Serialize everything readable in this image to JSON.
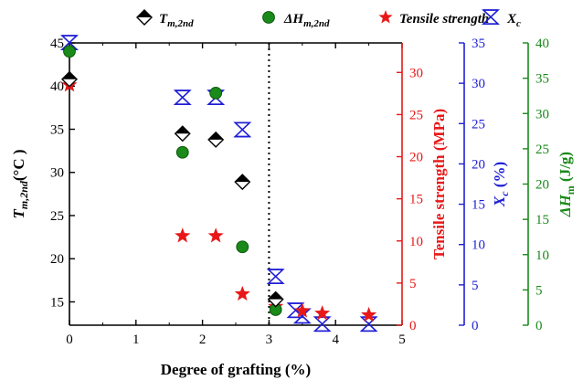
{
  "chart_data": {
    "type": "scatter",
    "legend": {
      "position": "top",
      "entries": [
        {
          "key": "tm",
          "prefix": "T",
          "sub": "m,2nd",
          "color": "#000000"
        },
        {
          "key": "dh",
          "prefix": "ΔH",
          "sub": "m,2nd",
          "color": "#1a8a1a"
        },
        {
          "key": "ts",
          "prefix": "Tensile strength",
          "sub": "",
          "color": "#e81818"
        },
        {
          "key": "xc",
          "prefix": "X",
          "sub": "c",
          "color": "#1f1fd6"
        }
      ]
    },
    "x_axis": {
      "title": "Degree of grafting (%)",
      "range": [
        0,
        5
      ],
      "ticks": [
        "0",
        "1",
        "2",
        "3",
        "4",
        "5"
      ]
    },
    "y_axes": {
      "tm": {
        "title_main": "T",
        "title_sub": "m,2nd",
        "title_unit": "(°C )",
        "range": [
          12.3,
          45
        ],
        "ticks": [
          15,
          20,
          25,
          30,
          35,
          40,
          45
        ],
        "color": "#000000"
      },
      "ts": {
        "title": "Tensile strength (MPa)",
        "range": [
          0,
          33.5
        ],
        "ticks": [
          0,
          5,
          10,
          15,
          20,
          25,
          30
        ],
        "color": "#e81818"
      },
      "xc": {
        "title_main": "X",
        "title_sub": "c",
        "title_unit": " (%)",
        "range": [
          0,
          35
        ],
        "ticks": [
          0,
          5,
          10,
          15,
          20,
          25,
          30,
          35
        ],
        "color": "#1f1fd6"
      },
      "dh": {
        "title_main": "ΔH",
        "title_sub": "m",
        "title_unit": " (J/g)",
        "range": [
          0,
          40
        ],
        "ticks": [
          0,
          5,
          10,
          15,
          20,
          25,
          30,
          35,
          40
        ],
        "color": "#1a8a1a"
      }
    },
    "reference_line": {
      "x": 3.0,
      "style": "dotted"
    },
    "grid": false,
    "series": [
      {
        "name": "T",
        "axis": "tm",
        "x": [
          0,
          1.7,
          2.2,
          2.6,
          3.1
        ],
        "y": [
          40.8,
          34.5,
          33.8,
          28.9,
          15.3
        ]
      },
      {
        "name": "ΔH",
        "axis": "dh",
        "x": [
          0,
          1.7,
          2.2,
          2.6,
          3.1
        ],
        "y": [
          38.8,
          24.5,
          32.9,
          11.1,
          2.2
        ]
      },
      {
        "name": "Tensile strength",
        "axis": "ts",
        "x": [
          0,
          1.7,
          2.2,
          2.6,
          3.1,
          3.5,
          3.8,
          4.5
        ],
        "y": [
          28.5,
          10.6,
          10.6,
          3.7,
          2.2,
          1.7,
          1.4,
          1.2
        ]
      },
      {
        "name": "X",
        "axis": "xc",
        "x": [
          0,
          1.7,
          2.2,
          2.6,
          3.1,
          3.4,
          3.5,
          3.8,
          4.5
        ],
        "y": [
          35.0,
          28.2,
          28.2,
          24.2,
          6.0,
          1.8,
          1.1,
          0.1,
          0.1
        ]
      }
    ]
  }
}
